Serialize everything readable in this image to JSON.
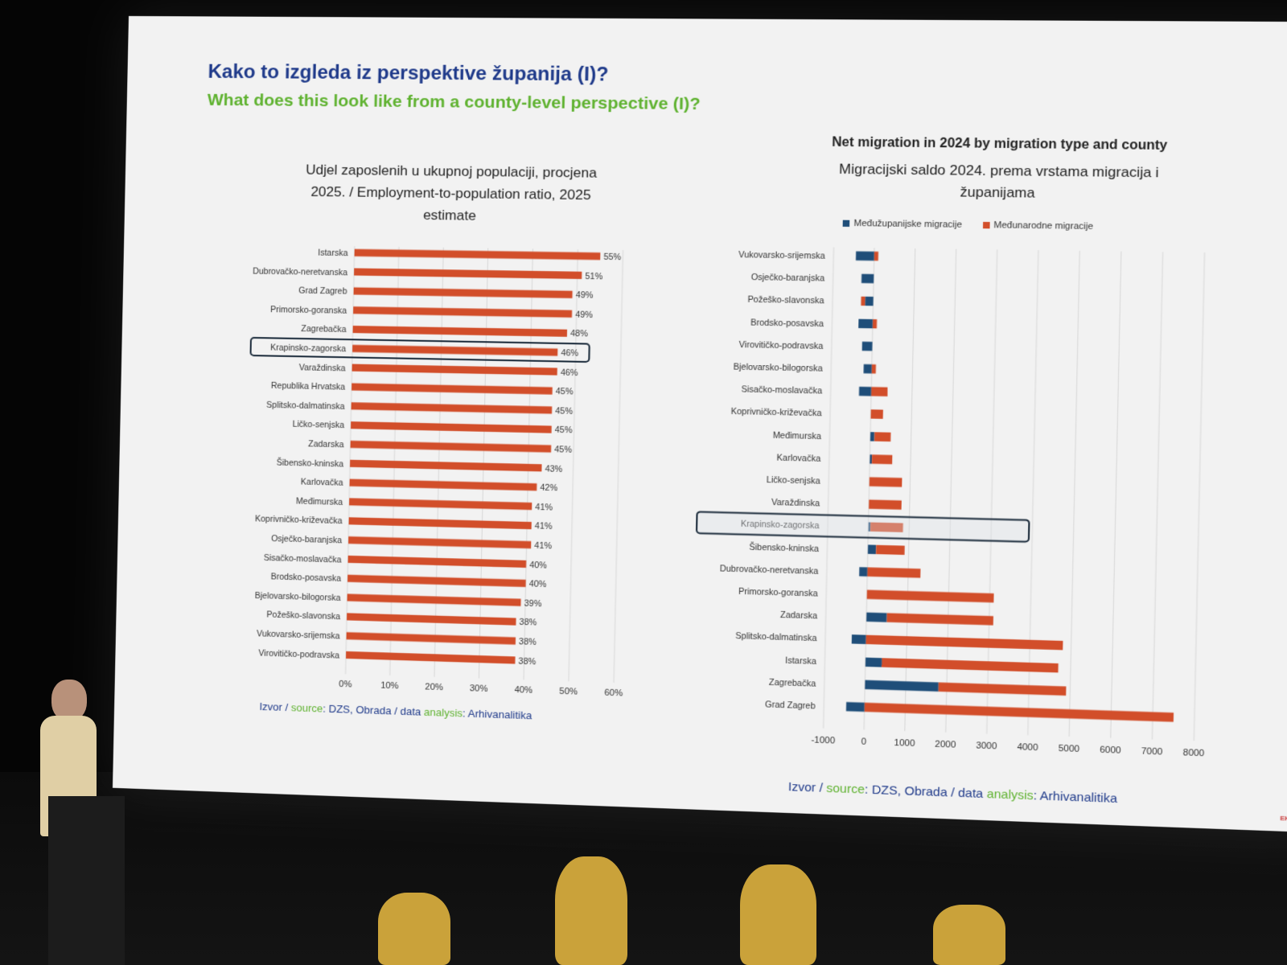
{
  "slide": {
    "title_hr": "Kako to izgleda iz perspektive županija (I)?",
    "title_en": "What does this look like from a county-level perspective (I)?",
    "source_left": {
      "p1": "Izvor / ",
      "p2": "source",
      "p3": ": DZS, Obrada / data ",
      "p4": "analysis",
      "p5": ": Arhivanalitika"
    },
    "source_right": {
      "p1": "Izvor / ",
      "p2": "source",
      "p3": ": DZS, Obrada / data ",
      "p4": "analysis",
      "p5": ": Arhivanalitika"
    },
    "logo": "EKONOMSKI"
  },
  "colors": {
    "orange": "#d24e2a",
    "navy": "#1f4e79",
    "highlight": "#1a2a3a"
  },
  "chart_data": [
    {
      "type": "bar",
      "orientation": "horizontal",
      "title": "Udjel zaposlenih u ukupnoj populaciji, procjena 2025. / Employment-to-population ratio, 2025 estimate",
      "title_lines": [
        "Udjel zaposlenih u ukupnoj populaciji, procjena",
        "2025. / Employment-to-population ratio, 2025",
        "estimate"
      ],
      "categories": [
        "Istarska",
        "Dubrovačko-neretvanska",
        "Grad Zagreb",
        "Primorsko-goranska",
        "Zagrebačka",
        "Krapinsko-zagorska",
        "Varaždinska",
        "Republika Hrvatska",
        "Splitsko-dalmatinska",
        "Ličko-senjska",
        "Zadarska",
        "Šibensko-kninska",
        "Karlovačka",
        "Međimurska",
        "Koprivničko-križevačka",
        "Osječko-baranjska",
        "Sisačko-moslavačka",
        "Brodsko-posavska",
        "Bjelovarsko-bilogorska",
        "Požeško-slavonska",
        "Vukovarsko-srijemska",
        "Virovitičko-podravska"
      ],
      "values": [
        55,
        51,
        49,
        49,
        48,
        46,
        46,
        45,
        45,
        45,
        45,
        43,
        42,
        41,
        41,
        41,
        40,
        40,
        39,
        38,
        38,
        38
      ],
      "value_labels": [
        "55%",
        "51%",
        "49%",
        "49%",
        "48%",
        "46%",
        "46%",
        "45%",
        "45%",
        "45%",
        "45%",
        "43%",
        "42%",
        "41%",
        "41%",
        "41%",
        "40%",
        "40%",
        "39%",
        "38%",
        "38%",
        "38%"
      ],
      "xlim": [
        0,
        60
      ],
      "ticks": [
        "0%",
        "10%",
        "20%",
        "30%",
        "40%",
        "50%",
        "60%"
      ],
      "highlighted": "Krapinsko-zagorska"
    },
    {
      "type": "bar",
      "orientation": "horizontal",
      "stacked": true,
      "title_en": "Net migration in 2024 by migration type and county",
      "title_hr_lines": [
        "Migracijski saldo 2024. prema vrstama migracija i",
        "županijama"
      ],
      "categories": [
        "Vukovarsko-srijemska",
        "Osječko-baranjska",
        "Požeško-slavonska",
        "Brodsko-posavska",
        "Virovitičko-podravska",
        "Bjelovarsko-bilogorska",
        "Sisačko-moslavačka",
        "Koprivničko-križevačka",
        "Međimurska",
        "Karlovačka",
        "Ličko-senjska",
        "Varaždinska",
        "Krapinsko-zagorska",
        "Šibensko-kninska",
        "Dubrovačko-neretvanska",
        "Primorsko-goranska",
        "Zadarska",
        "Splitsko-dalmatinska",
        "Istarska",
        "Zagrebačka",
        "Grad Zagreb"
      ],
      "series": [
        {
          "name": "Međužupanijske migracije",
          "color": "#1f4e79",
          "values": [
            -450,
            -300,
            -200,
            -350,
            -250,
            -200,
            -300,
            0,
            100,
            50,
            0,
            0,
            50,
            200,
            -200,
            0,
            500,
            -350,
            400,
            1800,
            -450
          ]
        },
        {
          "name": "Međunarodne migracije",
          "color": "#d24e2a",
          "values": [
            100,
            0,
            -100,
            100,
            0,
            100,
            400,
            300,
            400,
            500,
            800,
            800,
            800,
            700,
            1300,
            3100,
            2600,
            4800,
            4300,
            3100,
            7500
          ]
        }
      ],
      "xlim": [
        -1000,
        8000
      ],
      "ticks": [
        -1000,
        0,
        1000,
        2000,
        3000,
        4000,
        5000,
        6000,
        7000,
        8000
      ],
      "highlighted": "Krapinsko-zagorska"
    }
  ]
}
